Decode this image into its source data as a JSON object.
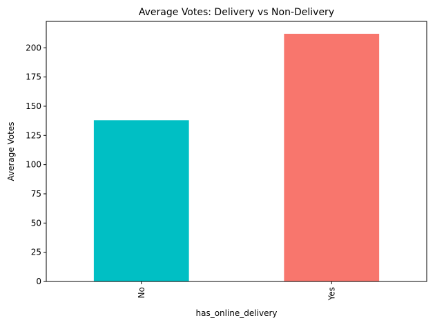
{
  "chart_data": {
    "type": "bar",
    "title": "Average Votes: Delivery vs Non-Delivery",
    "xlabel": "has_online_delivery",
    "ylabel": "Average Votes",
    "categories": [
      "No",
      "Yes"
    ],
    "values": [
      138,
      212
    ],
    "colors": [
      "#00BFC4",
      "#F8766D"
    ],
    "ylim": [
      0,
      222.6
    ],
    "yticks": [
      0,
      25,
      50,
      75,
      100,
      125,
      150,
      175,
      200
    ],
    "xtick_rotation": 90,
    "grid": false,
    "legend": "none"
  }
}
